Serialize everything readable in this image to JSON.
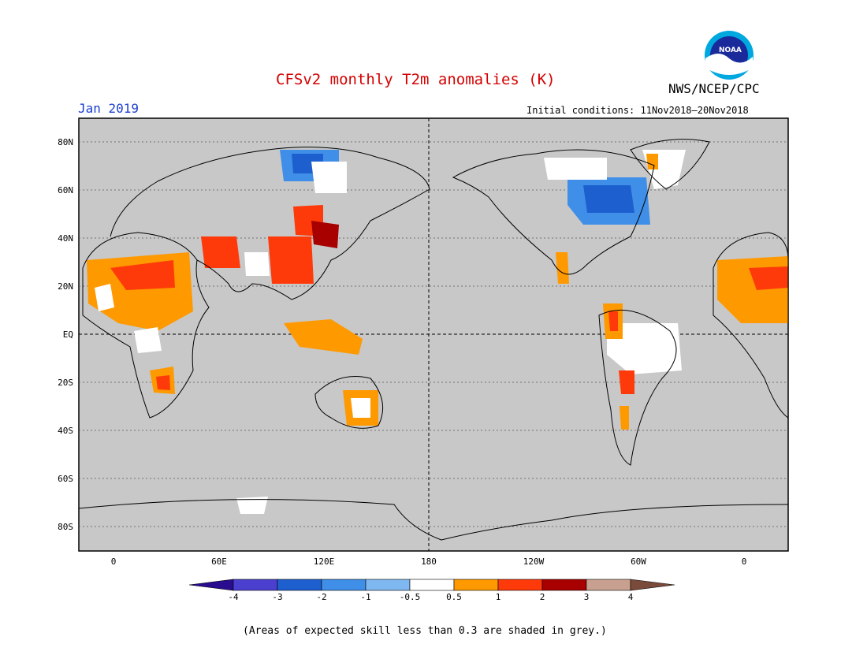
{
  "title": "CFSv2 monthly T2m anomalies (K)",
  "agency": "NWS/NCEP/CPC",
  "logo_text": "NOAA",
  "month": "Jan 2019",
  "initial_conditions": "Initial conditions: 11Nov2018–20Nov2018",
  "footnote": "(Areas of expected skill less than 0.3 are shaded in grey.)",
  "map": {
    "background_color": "#c8c8c8",
    "lat_labels": [
      "80N",
      "60N",
      "40N",
      "20N",
      "EQ",
      "20S",
      "40S",
      "60S",
      "80S"
    ],
    "lon_labels": [
      "0",
      "60E",
      "120E",
      "180",
      "120W",
      "60W",
      "0"
    ]
  },
  "colorbar": {
    "labels": [
      "-4",
      "-3",
      "-2",
      "-1",
      "-0.5",
      "0.5",
      "1",
      "2",
      "3",
      "4"
    ],
    "colors": [
      "#2a0d8e",
      "#4b3fcf",
      "#1e5fcf",
      "#3f8fe8",
      "#7fb8f0",
      "#ffffff",
      "#ff9900",
      "#ff3a0a",
      "#a80000",
      "#c8a090",
      "#7a4a3a"
    ]
  }
}
